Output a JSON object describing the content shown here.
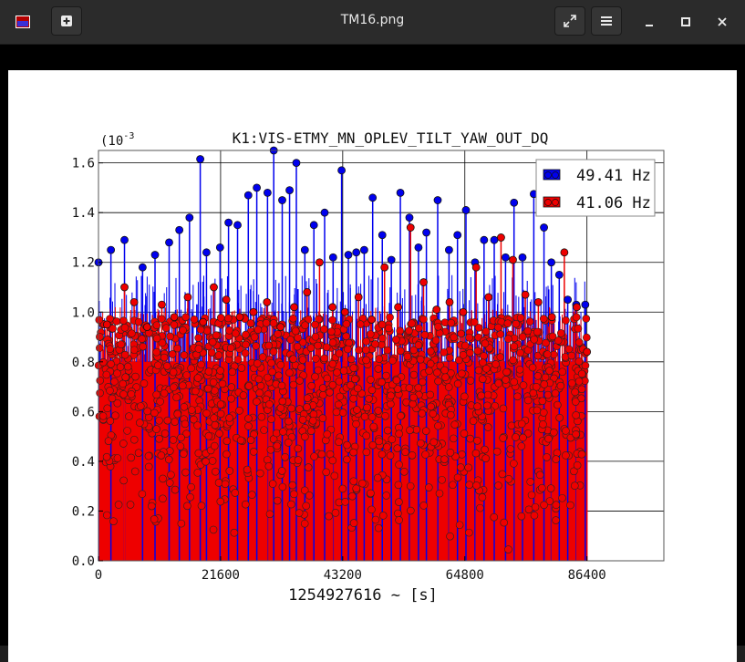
{
  "window": {
    "title": "TM16.png",
    "icons": {
      "app": "image-viewer-icon",
      "new": "plus-icon",
      "fullscreen": "expand-icon",
      "menu": "hamburger-icon",
      "minimize": "minimize-icon",
      "maximize": "maximize-icon",
      "close": "close-icon"
    }
  },
  "chart_data": {
    "type": "scatter",
    "style": "stem",
    "title": "K1:VIS-ETMY_MN_OPLEV_TILT_YAW_OUT_DQ",
    "xlabel": "1254927616 ~ [s]",
    "ylabel": "",
    "y_multiplier": "(10",
    "y_multiplier_exp": "-3",
    "xlim": [
      0,
      100000
    ],
    "ylim": [
      0.0,
      1.65
    ],
    "xticks": [
      0,
      21600,
      43200,
      64800,
      86400
    ],
    "xtick_labels": [
      "0",
      "21600",
      "43200",
      "64800",
      "86400"
    ],
    "yticks": [
      0.0,
      0.2,
      0.4,
      0.6,
      0.8,
      1.0,
      1.2,
      1.4,
      1.6
    ],
    "ytick_labels": [
      "0.0",
      "0.2",
      "0.4",
      "0.6",
      "0.8",
      "1.0",
      "1.2",
      "1.4",
      "1.6"
    ],
    "grid": true,
    "legend_position": "top-right",
    "series": [
      {
        "name": "49.41 Hz",
        "color": "#0000ee",
        "x": [
          0,
          2200,
          4600,
          7800,
          10000,
          12500,
          14300,
          16100,
          18000,
          19100,
          21500,
          23000,
          24600,
          26500,
          28000,
          29900,
          31000,
          32500,
          33800,
          35000,
          36500,
          38100,
          40000,
          41500,
          43000,
          44200,
          45600,
          47000,
          48500,
          50200,
          51800,
          53400,
          55000,
          56600,
          58000,
          60000,
          62000,
          63500,
          65000,
          66600,
          68200,
          70000,
          72000,
          73500,
          75000,
          77000,
          78800,
          80100,
          81500,
          83000,
          84500,
          86100
        ],
        "y": [
          1.2,
          1.25,
          1.29,
          1.18,
          1.23,
          1.28,
          1.33,
          1.38,
          1.615,
          1.24,
          1.26,
          1.36,
          1.35,
          1.47,
          1.5,
          1.48,
          1.65,
          1.45,
          1.49,
          1.6,
          1.25,
          1.35,
          1.4,
          1.22,
          1.57,
          1.23,
          1.24,
          1.25,
          1.46,
          1.31,
          1.21,
          1.48,
          1.38,
          1.26,
          1.32,
          1.45,
          1.25,
          1.31,
          1.41,
          1.2,
          1.29,
          1.29,
          1.22,
          1.44,
          1.22,
          1.475,
          1.34,
          1.2,
          1.15,
          1.05,
          1.03,
          1.03
        ]
      },
      {
        "name": "41.06 Hz",
        "color": "#ee0000",
        "x": [
          1500,
          4600,
          6300,
          8600,
          11200,
          13400,
          15800,
          18500,
          20400,
          22600,
          25000,
          27400,
          29800,
          32200,
          34600,
          36900,
          39100,
          41400,
          43600,
          46000,
          48300,
          50600,
          53000,
          55200,
          57500,
          59800,
          62100,
          64500,
          66800,
          69000,
          71200,
          73300,
          75500,
          77800,
          80200,
          82400,
          84600,
          86400
        ],
        "y": [
          0.95,
          1.1,
          1.04,
          0.94,
          1.03,
          0.98,
          1.06,
          0.96,
          1.1,
          1.05,
          0.98,
          1.0,
          1.04,
          0.94,
          1.02,
          1.08,
          1.2,
          1.02,
          1.0,
          1.06,
          0.97,
          1.18,
          1.02,
          1.34,
          1.12,
          1.01,
          1.04,
          1.0,
          1.18,
          1.06,
          1.3,
          1.21,
          1.07,
          1.04,
          0.98,
          1.24,
          1.02,
          0.84
        ]
      }
    ]
  }
}
